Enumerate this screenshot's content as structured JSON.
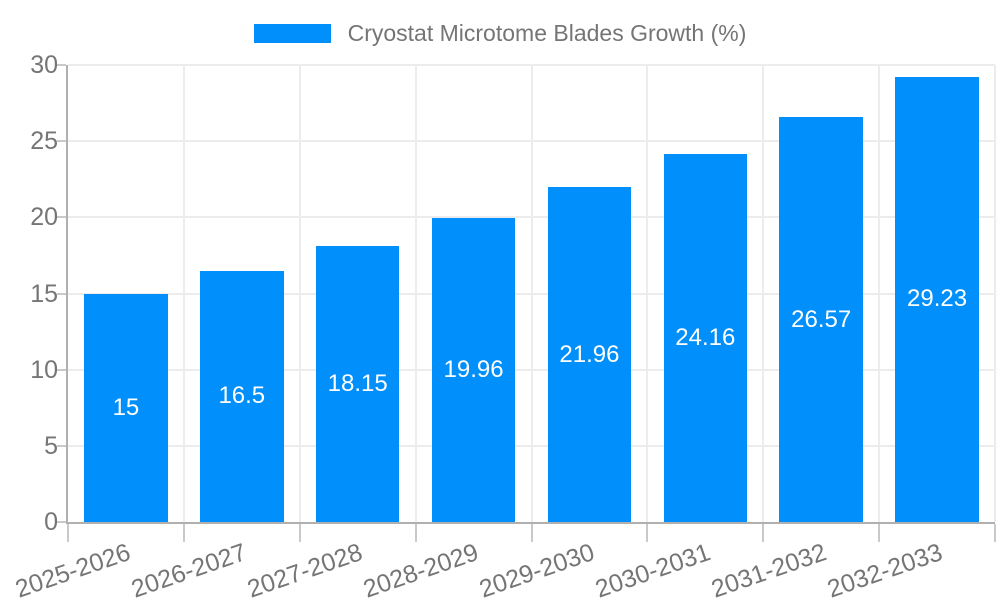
{
  "legend": {
    "label": "Cryostat Microtome Blades Growth (%)"
  },
  "chart_data": {
    "type": "bar",
    "title": "Cryostat Microtome Blades Growth (%)",
    "categories": [
      "2025-2026",
      "2026-2027",
      "2027-2028",
      "2028-2029",
      "2029-2030",
      "2030-2031",
      "2031-2032",
      "2032-2033"
    ],
    "values": [
      15,
      16.5,
      18.15,
      19.96,
      21.96,
      24.16,
      26.57,
      29.23
    ],
    "value_labels": [
      "15",
      "16.5",
      "18.15",
      "19.96",
      "21.96",
      "24.16",
      "26.57",
      "29.23"
    ],
    "xlabel": "",
    "ylabel": "",
    "ylim": [
      0,
      30
    ],
    "yticks": [
      0,
      5,
      10,
      15,
      20,
      25,
      30
    ],
    "grid": true,
    "legend_position": "top",
    "value_label_position": "inside-center",
    "colors": {
      "bar": "#008ffb",
      "value_label": "#ffffff",
      "axis_text": "#757575",
      "axis_line": "#b0b0b0",
      "gridline": "#ececec",
      "background": "#ffffff"
    }
  }
}
